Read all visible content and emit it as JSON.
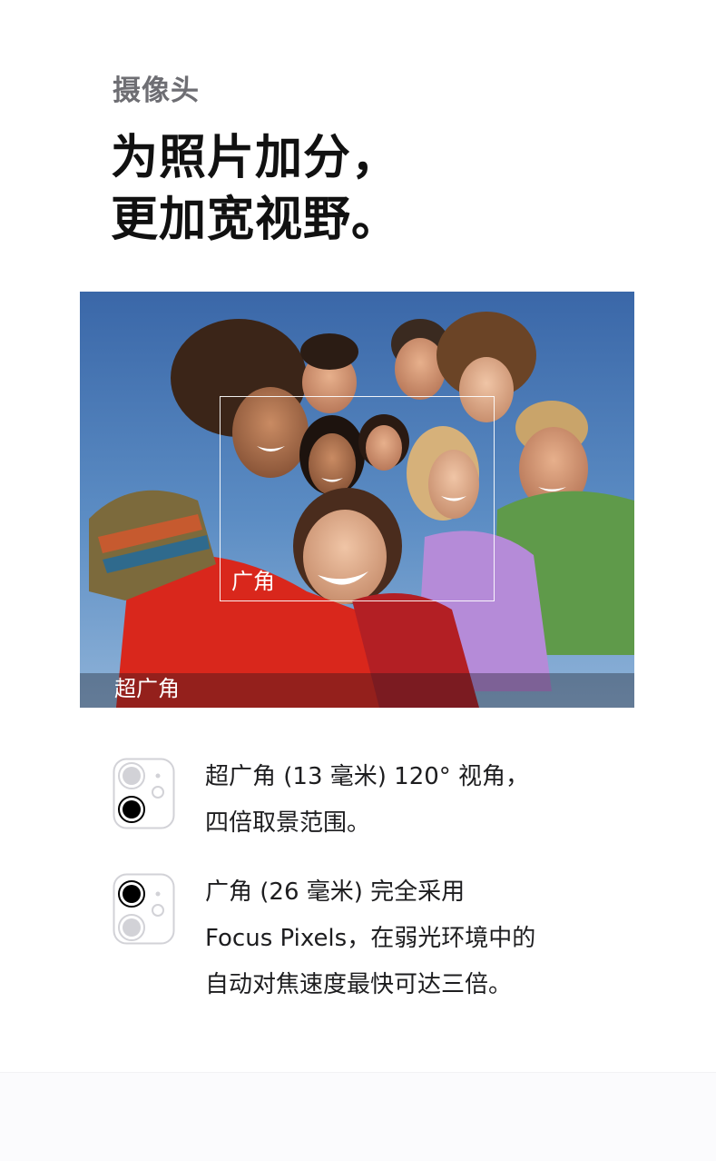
{
  "eyebrow": "摄像头",
  "headline": {
    "line1": "为照片加分，",
    "line2": "更加宽视野。"
  },
  "photo": {
    "wide_label": "广角",
    "ultra_wide_label": "超广角"
  },
  "specs": [
    {
      "icon": "ultra-wide-lens-icon",
      "lines": [
        "超广角 (13 毫米) 120° 视角，",
        "四倍取景范围。"
      ]
    },
    {
      "icon": "wide-lens-icon",
      "lines": [
        "广角 (26 毫米) 完全采用",
        "Focus Pixels，在弱光环境中的",
        "自动对焦速度最快可达三倍。"
      ]
    }
  ],
  "colors": {
    "eyebrow": "#6e6e73",
    "headline": "#111111",
    "body_text": "#1d1d1f",
    "active_lens": "#000000",
    "inactive_lens": "#d2d2d7"
  }
}
